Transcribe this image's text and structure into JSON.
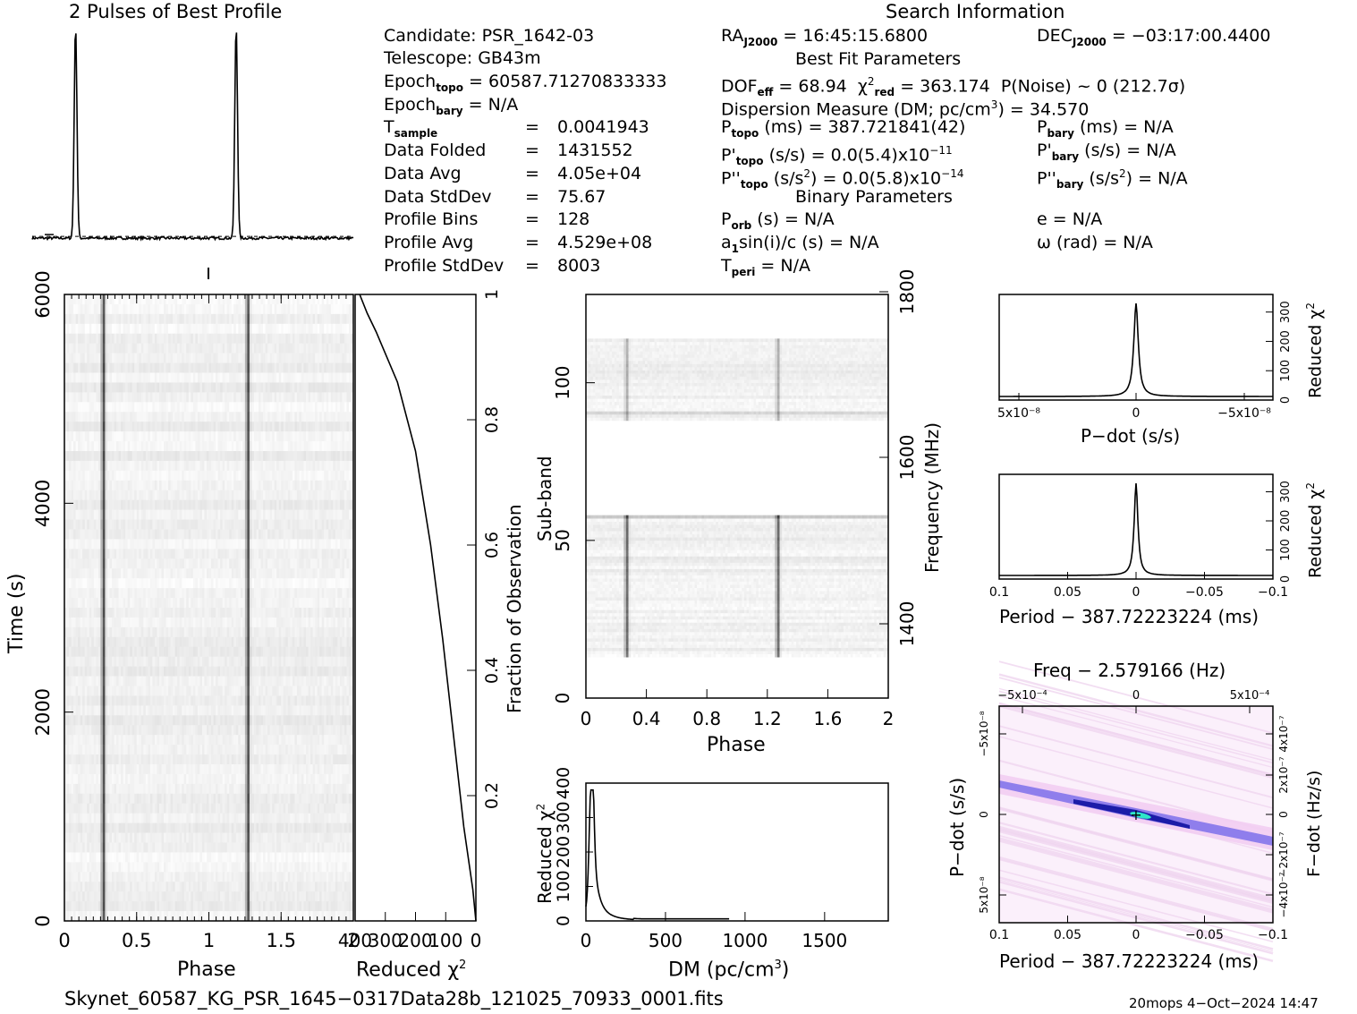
{
  "titles": {
    "profile": "2 Pulses of Best Profile",
    "search": "Search Information",
    "best_fit": "Best Fit Parameters",
    "binary": "Binary Parameters"
  },
  "info_left": {
    "candidate": "Candidate:  PSR_1642-03",
    "telescope": "Telescope:  GB43m",
    "epoch_topo_label": "Epoch",
    "epoch_topo_sub": "topo",
    "epoch_topo_val": " = 60587.71270833333",
    "epoch_bary_label": "Epoch",
    "epoch_bary_sub": "bary",
    "epoch_bary_val": " = N/A",
    "tsample_label": "T",
    "tsample_sub": "sample",
    "rows": [
      {
        "label": "",
        "eq": "=",
        "val": "0.0041943"
      },
      {
        "label": "Data Folded",
        "eq": "=",
        "val": "1431552"
      },
      {
        "label": "Data Avg",
        "eq": "=",
        "val": "4.05e+04"
      },
      {
        "label": "Data StdDev",
        "eq": "=",
        "val": "75.67"
      },
      {
        "label": "Profile Bins",
        "eq": "=",
        "val": "128"
      },
      {
        "label": "Profile Avg",
        "eq": "=",
        "val": "4.529e+08"
      },
      {
        "label": "Profile StdDev",
        "eq": "=",
        "val": "8003"
      }
    ]
  },
  "info_mid": {
    "ra": "= 16:45:15.6800",
    "dof": "= 68.94",
    "chi_red": "= 363.174",
    "pnoise": "P(Noise) ~ 0   (212.7σ)",
    "dm": "Dispersion Measure (DM; pc/cm",
    "dm_val": ") = 34.570",
    "ptopo": "(ms) =  387.721841(42)",
    "pdot_topo": "(s/s) = 0.0(5.4)x10",
    "pdot_exp": "−11",
    "pddot_topo": "(s/s",
    "pddot_val": ") = 0.0(5.8)x10",
    "pddot_exp": "−14",
    "porb": "(s) = N/A",
    "asini": "sin(i)/c (s) = N/A",
    "tperi": "= N/A"
  },
  "info_right": {
    "dec": "= −03:17:00.4400",
    "pbary": "(ms) = N/A",
    "pdot_bary": "(s/s) = N/A",
    "pddot_bary": "(s/s",
    "pddot_bary_val": ") = N/A",
    "e": "e = N/A",
    "omega": "ω (rad) = N/A"
  },
  "axes": {
    "time_label": "Time (s)",
    "phase_label": "Phase",
    "redchi_label": "Reduced χ",
    "fraction_label": "Fraction of Observation",
    "subband_label": "Sub-band",
    "freq_label": "Frequency (MHz)",
    "dm_label": "DM (pc/cm",
    "dm_label_end": ")",
    "pdot_label": "P−dot (s/s)",
    "period_label": "Period − 387.72223224 (ms)",
    "freq_top_label": "Freq − 2.579166 (Hz)",
    "fdot_label": "F−dot (Hz/s)"
  },
  "footer": {
    "filename": "Skynet_60587_KG_PSR_1645−0317Data28b_121025_70933_0001.fits",
    "stamp": "20mops  4−Oct−2024 14:47"
  },
  "chart_data": [
    {
      "type": "line",
      "name": "profile",
      "x_phase": [
        0,
        2
      ],
      "peaks": [
        0.27,
        1.27
      ],
      "peak_height": 1.0,
      "baseline": 0.05
    },
    {
      "type": "heatmap",
      "name": "time-phase",
      "x": {
        "label": "Phase",
        "range": [
          0,
          2
        ],
        "ticks": [
          0,
          0.5,
          1,
          1.5,
          2
        ]
      },
      "y": {
        "label": "Time (s)",
        "range": [
          0,
          6000
        ],
        "ticks": [
          0,
          2000,
          4000,
          6000
        ]
      },
      "pulse_phases": [
        0.27,
        1.27
      ]
    },
    {
      "type": "line",
      "name": "reduced-chi2-vs-fraction",
      "x": {
        "label": "Reduced χ²",
        "range": [
          400,
          0
        ],
        "ticks": [
          400,
          300,
          200,
          100,
          0
        ]
      },
      "y": {
        "label": "Fraction of Observation",
        "range": [
          0,
          1
        ],
        "ticks": [
          0.2,
          0.4,
          0.6,
          0.8,
          1
        ]
      },
      "points": [
        [
          0,
          0.0
        ],
        [
          10,
          0.05
        ],
        [
          40,
          0.15
        ],
        [
          75,
          0.3
        ],
        [
          110,
          0.45
        ],
        [
          150,
          0.6
        ],
        [
          200,
          0.75
        ],
        [
          260,
          0.86
        ],
        [
          330,
          0.94
        ],
        [
          360,
          0.97
        ],
        [
          385,
          1.0
        ]
      ]
    },
    {
      "type": "heatmap",
      "name": "subband-phase",
      "x": {
        "label": "Phase",
        "range": [
          0,
          2
        ],
        "ticks": [
          0,
          0.4,
          0.8,
          1.2,
          1.6,
          2
        ]
      },
      "y": {
        "label": "Sub-band",
        "range": [
          0,
          128
        ],
        "ticks": [
          0,
          50,
          100
        ]
      },
      "y2": {
        "label": "Frequency (MHz)",
        "ticks": [
          1400,
          1600,
          1800
        ]
      },
      "pulse_phases": [
        0.27,
        1.27
      ]
    },
    {
      "type": "line",
      "name": "dm-curve",
      "x": {
        "label": "DM (pc/cm³)",
        "range": [
          0,
          1900
        ],
        "ticks": [
          0,
          500,
          1000,
          1500
        ]
      },
      "y": {
        "label": "Reduced χ²",
        "range": [
          0,
          400
        ],
        "ticks": [
          0,
          100,
          200,
          300,
          400
        ]
      },
      "peak_dm": 34.57,
      "peak_value": 363
    },
    {
      "type": "line",
      "name": "pdot-curve",
      "x": {
        "label": "P−dot (s/s)",
        "ticks": [
          "5x10⁻⁸",
          "0",
          "−5x10⁻⁸"
        ]
      },
      "y": {
        "label": "Reduced χ²",
        "ticks": [
          0,
          100,
          200,
          300
        ]
      }
    },
    {
      "type": "line",
      "name": "period-curve",
      "x": {
        "label": "Period − 387.72223224 (ms)",
        "range": [
          0.1,
          -0.1
        ],
        "ticks": [
          0.1,
          0.05,
          0,
          -0.05,
          -0.1
        ]
      },
      "y": {
        "label": "Reduced χ²",
        "ticks": [
          0,
          100,
          200,
          300
        ]
      }
    },
    {
      "type": "heatmap",
      "name": "p-pdot",
      "x": {
        "label": "Period − 387.72223224 (ms)",
        "range": [
          0.1,
          -0.1
        ],
        "ticks": [
          0.1,
          0.05,
          0,
          -0.05,
          -0.1
        ]
      },
      "x2": {
        "label": "Freq − 2.579166 (Hz)",
        "ticks": [
          "−5x10⁻⁴",
          "0",
          "5x10⁻⁴"
        ]
      },
      "y": {
        "label": "P−dot (s/s)",
        "ticks": [
          "−5x10⁻⁸",
          "0",
          "5x10⁻⁸"
        ]
      },
      "y2": {
        "label": "F−dot (Hz/s)",
        "ticks": [
          "4x10⁻⁷",
          "2x10⁻⁷",
          "0",
          "−2x10⁻⁷",
          "−4x10⁻⁷"
        ]
      }
    }
  ]
}
